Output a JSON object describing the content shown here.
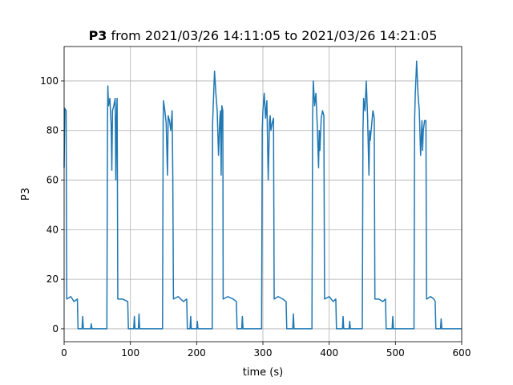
{
  "chart_data": {
    "type": "line",
    "title_name": "P3",
    "title_rest": "from 2021/03/26 14:11:05 to 2021/03/26 14:21:05",
    "xlabel": "time (s)",
    "ylabel": "P3",
    "color": "#1f77b4",
    "grid": true,
    "xlim": [
      0,
      600
    ],
    "ylim": [
      -5.2,
      113.9
    ],
    "xticks": [
      0,
      100,
      200,
      300,
      400,
      500,
      600
    ],
    "yticks": [
      0,
      20,
      40,
      60,
      80,
      100
    ],
    "x": [
      0,
      1,
      3,
      4,
      10,
      15,
      20,
      21,
      27,
      28,
      29,
      40,
      41,
      42,
      64.5,
      65.5,
      66,
      67,
      69,
      71,
      72,
      73,
      75,
      77,
      78,
      79,
      80,
      81,
      88,
      96,
      97,
      105,
      106,
      107,
      112,
      113,
      114,
      148.5,
      149.5,
      150,
      152,
      154,
      156,
      157,
      159,
      161,
      163,
      164,
      165,
      172,
      180,
      185,
      186,
      190,
      191,
      192,
      200,
      201,
      202,
      223.5,
      224,
      225,
      227,
      229,
      231,
      233,
      235,
      236,
      237,
      238,
      239.5,
      240,
      247,
      255,
      260,
      261,
      268,
      269,
      270,
      298,
      299,
      300,
      302,
      304,
      306,
      308,
      310,
      311,
      312,
      314,
      316,
      317,
      323,
      330,
      335,
      336,
      345,
      346,
      347,
      374,
      375,
      376,
      378,
      380,
      382,
      384,
      385,
      386,
      388,
      390,
      392,
      393,
      400,
      406,
      410,
      411,
      420,
      421,
      422,
      430,
      431,
      432,
      450,
      451,
      452,
      454,
      456,
      458,
      460,
      461,
      462,
      464,
      466,
      468,
      469,
      475,
      481,
      485,
      486,
      495,
      496,
      497,
      528,
      529,
      530,
      532,
      534,
      536,
      538,
      540,
      541,
      542,
      544,
      546,
      547,
      553,
      558,
      560,
      561,
      568,
      569,
      570,
      600
    ],
    "values": [
      65,
      89,
      88,
      12,
      13,
      11,
      12,
      0,
      0,
      5,
      0,
      0,
      2,
      0,
      0,
      85,
      98,
      90,
      93,
      82,
      64,
      88,
      90,
      93,
      60,
      85,
      93,
      12,
      12,
      11,
      0,
      0,
      5,
      0,
      0,
      6,
      0,
      0,
      85,
      92,
      88,
      83,
      62,
      86,
      84,
      80,
      88,
      62,
      12,
      13,
      11,
      12,
      0,
      0,
      5,
      0,
      0,
      3,
      0,
      0,
      82,
      90,
      104,
      95,
      88,
      70,
      85,
      88,
      62,
      90,
      88,
      12,
      13,
      12,
      11,
      0,
      0,
      5,
      0,
      0,
      80,
      88,
      95,
      85,
      92,
      60,
      84,
      86,
      80,
      83,
      85,
      12,
      13,
      12,
      11,
      0,
      0,
      6,
      0,
      0,
      85,
      100,
      90,
      95,
      82,
      65,
      80,
      72,
      85,
      88,
      86,
      12,
      13,
      11,
      12,
      0,
      0,
      5,
      0,
      0,
      3,
      0,
      0,
      80,
      93,
      88,
      100,
      85,
      62,
      80,
      76,
      82,
      88,
      85,
      12,
      12,
      11,
      12,
      0,
      0,
      5,
      0,
      0,
      85,
      95,
      108,
      95,
      88,
      70,
      84,
      72,
      80,
      84,
      84,
      12,
      13,
      12,
      11,
      0,
      0,
      4,
      0,
      0
    ]
  }
}
